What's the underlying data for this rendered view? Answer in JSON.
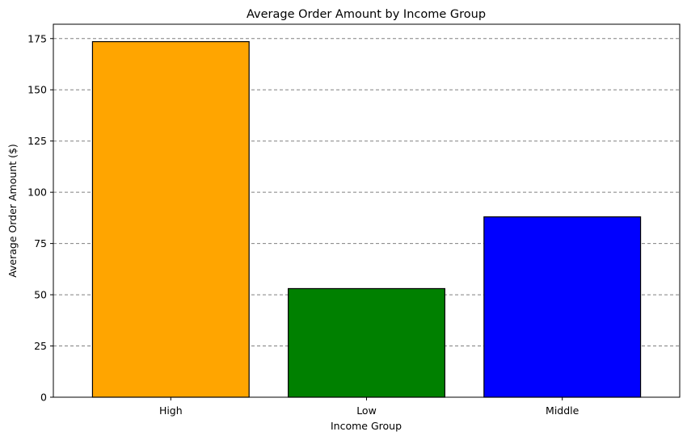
{
  "chart_data": {
    "type": "bar",
    "title": "Average Order Amount by Income Group",
    "xlabel": "Income Group",
    "ylabel": "Average Order Amount ($)",
    "categories": [
      "High",
      "Low",
      "Middle"
    ],
    "values": [
      173.5,
      53,
      88
    ],
    "colors": [
      "#ffa500",
      "#008000",
      "#0000ff"
    ],
    "ylim": [
      0,
      182
    ],
    "yticks": [
      0,
      25,
      50,
      75,
      100,
      125,
      150,
      175
    ],
    "grid": "y-dashed",
    "legend": "none"
  }
}
